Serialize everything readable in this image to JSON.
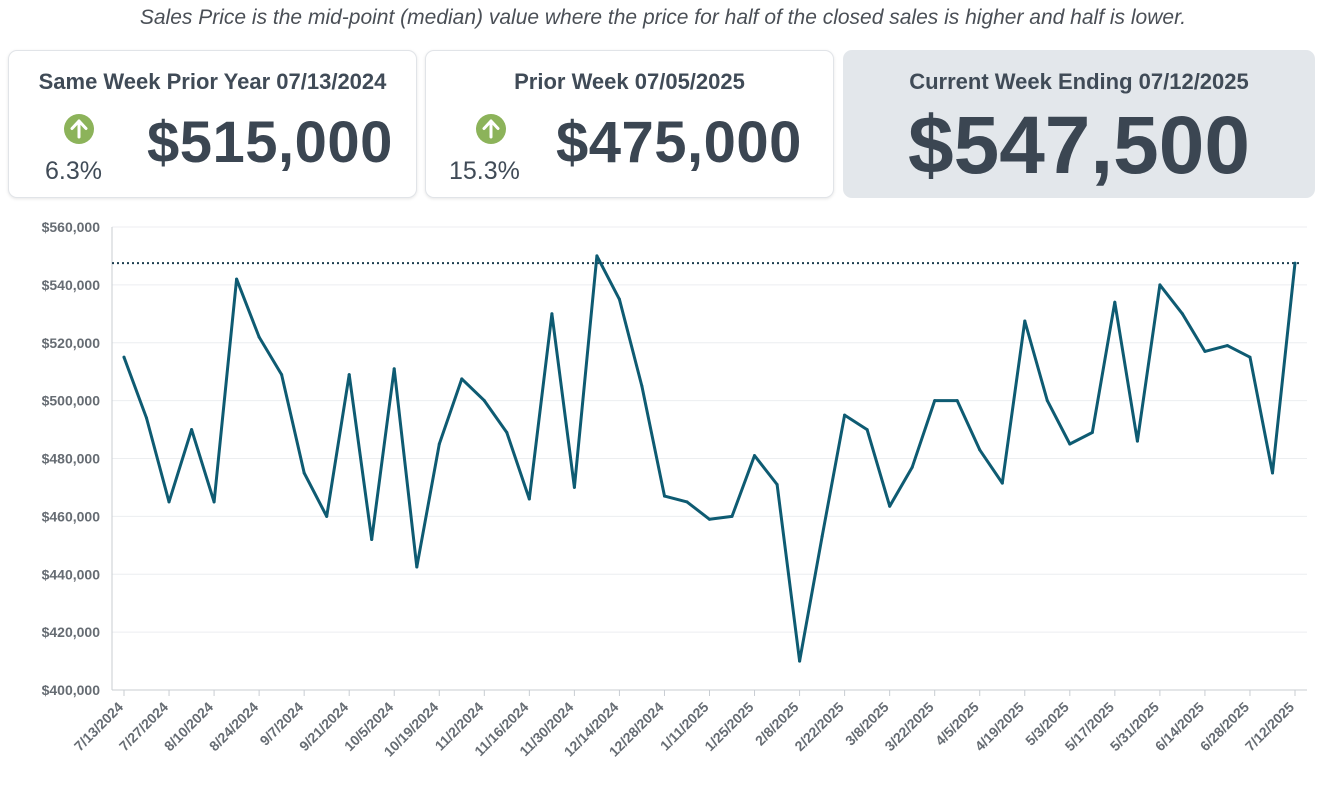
{
  "note": "Sales Price is the mid-point (median) value where the price for half of the closed sales is higher and half is lower.",
  "cards": {
    "prior_year": {
      "title": "Same Week Prior Year 07/13/2024",
      "change": "6.3%",
      "value": "$515,000",
      "direction": "up"
    },
    "prior_week": {
      "title": "Prior Week 07/05/2025",
      "change": "15.3%",
      "value": "$475,000",
      "direction": "up"
    },
    "current": {
      "title": "Current Week Ending 07/12/2025",
      "value": "$547,500"
    }
  },
  "colors": {
    "line": "#0e5b72",
    "reference": "#1d3e4f",
    "up_arrow": "#8cb35a",
    "current_card": "#e3e7eb"
  },
  "chart_data": {
    "type": "line",
    "xlabel": "",
    "ylabel": "",
    "ylim": [
      400000,
      560000
    ],
    "y_ticks": [
      "$400,000",
      "$420,000",
      "$440,000",
      "$460,000",
      "$480,000",
      "$500,000",
      "$520,000",
      "$540,000",
      "$560,000"
    ],
    "y_tick_values": [
      400000,
      420000,
      440000,
      460000,
      480000,
      500000,
      520000,
      540000,
      560000
    ],
    "x_tick_labels": [
      "7/13/2024",
      "7/27/2024",
      "8/10/2024",
      "8/24/2024",
      "9/7/2024",
      "9/21/2024",
      "10/5/2024",
      "10/19/2024",
      "11/2/2024",
      "11/16/2024",
      "11/30/2024",
      "12/14/2024",
      "12/28/2024",
      "1/11/2025",
      "1/25/2025",
      "2/8/2025",
      "2/22/2025",
      "3/8/2025",
      "3/22/2025",
      "4/5/2025",
      "4/19/2025",
      "5/3/2025",
      "5/17/2025",
      "5/31/2025",
      "6/14/2025",
      "6/28/2025",
      "7/12/2025"
    ],
    "reference_line": 547500,
    "grid": "horizontal",
    "series": [
      {
        "x": [
          "7/13/2024",
          "7/20/2024",
          "7/27/2024",
          "8/3/2024",
          "8/10/2024",
          "8/17/2024",
          "8/24/2024",
          "8/31/2024",
          "9/7/2024",
          "9/14/2024",
          "9/21/2024",
          "9/28/2024",
          "10/5/2024",
          "10/12/2024",
          "10/19/2024",
          "10/26/2024",
          "11/2/2024",
          "11/9/2024",
          "11/16/2024",
          "11/23/2024",
          "11/30/2024",
          "12/7/2024",
          "12/14/2024",
          "12/21/2024",
          "12/28/2024",
          "1/4/2025",
          "1/11/2025",
          "1/18/2025",
          "1/25/2025",
          "2/1/2025",
          "2/8/2025",
          "2/15/2025",
          "2/22/2025",
          "3/1/2025",
          "3/8/2025",
          "3/15/2025",
          "3/22/2025",
          "3/29/2025",
          "4/5/2025",
          "4/12/2025",
          "4/19/2025",
          "4/26/2025",
          "5/3/2025",
          "5/10/2025",
          "5/17/2025",
          "5/24/2025",
          "5/31/2025",
          "6/7/2025",
          "6/14/2025",
          "6/21/2025",
          "6/28/2025",
          "7/5/2025",
          "7/12/2025"
        ],
        "values": [
          515000,
          494000,
          465000,
          490000,
          465000,
          542000,
          522000,
          509000,
          475000,
          460000,
          509000,
          452000,
          511000,
          442500,
          485000,
          507500,
          500000,
          489000,
          466000,
          530000,
          470000,
          550000,
          535000,
          505000,
          467000,
          465000,
          459000,
          460000,
          481000,
          471000,
          410000,
          453000,
          495000,
          490000,
          463500,
          477000,
          500000,
          500000,
          483000,
          471500,
          527500,
          500000,
          485000,
          489000,
          534000,
          486000,
          540000,
          530000,
          517000,
          519000,
          515000,
          475000,
          547500
        ]
      }
    ]
  }
}
